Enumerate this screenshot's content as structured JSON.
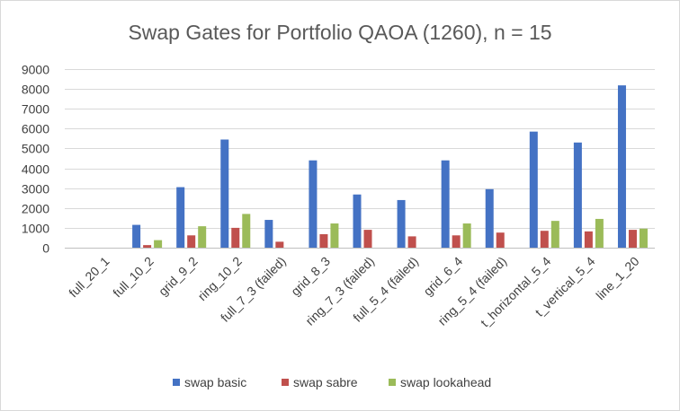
{
  "chart_data": {
    "type": "bar",
    "title": "Swap Gates for Portfolio QAOA (1260), n = 15",
    "xlabel": "",
    "ylabel": "",
    "ylim": [
      0,
      9000
    ],
    "yticks": [
      0,
      1000,
      2000,
      3000,
      4000,
      5000,
      6000,
      7000,
      8000,
      9000
    ],
    "grid": true,
    "legend_position": "bottom",
    "categories": [
      "full_20_1",
      "full_10_2",
      "grid_9_2",
      "ring_10_2",
      "full_7_3 (failed)",
      "grid_8_3",
      "ring_7_3 (failed)",
      "full_5_4 (failed)",
      "grid_6_4",
      "ring_5_4 (failed)",
      "t_horizontal_5_4",
      "t_vertical_5_4",
      "line_1_20"
    ],
    "series": [
      {
        "name": "swap basic",
        "color": "#4472C4",
        "values": [
          0,
          1150,
          3050,
          5450,
          1400,
          4400,
          2680,
          2400,
          4400,
          2950,
          5850,
          5300,
          8180
        ]
      },
      {
        "name": "swap sabre",
        "color": "#C0504D",
        "values": [
          0,
          130,
          620,
          1000,
          300,
          680,
          900,
          570,
          620,
          760,
          850,
          820,
          900
        ]
      },
      {
        "name": "swap lookahead",
        "color": "#9BBB59",
        "values": [
          0,
          380,
          1080,
          1700,
          0,
          1220,
          0,
          0,
          1220,
          0,
          1350,
          1450,
          960
        ]
      }
    ]
  }
}
